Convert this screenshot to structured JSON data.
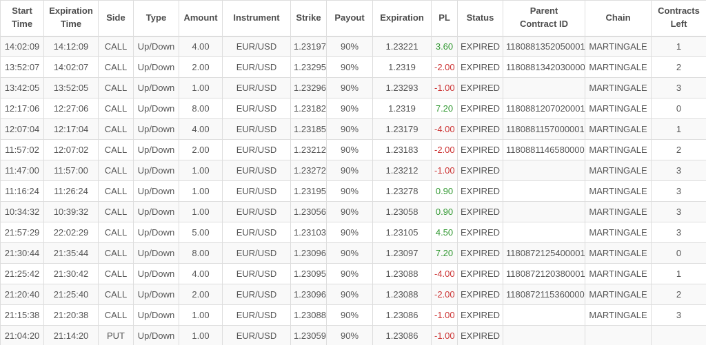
{
  "colors": {
    "pl_positive": "#339933",
    "pl_negative": "#cc3333",
    "header_text": "#4d4d4d",
    "body_text": "#555555",
    "border": "#dddddd",
    "row_stripe": "#f9f9f9"
  },
  "table": {
    "columns": [
      {
        "key": "start_time",
        "label": "Start\nTime"
      },
      {
        "key": "expiration_time",
        "label": "Expiration\nTime"
      },
      {
        "key": "side",
        "label": "Side"
      },
      {
        "key": "type",
        "label": "Type"
      },
      {
        "key": "amount",
        "label": "Amount"
      },
      {
        "key": "instrument",
        "label": "Instrument"
      },
      {
        "key": "strike",
        "label": "Strike"
      },
      {
        "key": "payout",
        "label": "Payout"
      },
      {
        "key": "expiration",
        "label": "Expiration"
      },
      {
        "key": "pl",
        "label": "PL"
      },
      {
        "key": "status",
        "label": "Status"
      },
      {
        "key": "parent_contract_id",
        "label": "Parent\nContract ID"
      },
      {
        "key": "chain",
        "label": "Chain"
      },
      {
        "key": "contracts_left",
        "label": "Contracts\nLeft"
      }
    ],
    "rows": [
      {
        "start_time": "14:02:09",
        "expiration_time": "14:12:09",
        "side": "CALL",
        "type": "Up/Down",
        "amount": "4.00",
        "instrument": "EUR/USD",
        "strike": "1.23197",
        "payout": "90%",
        "expiration": "1.23221",
        "pl": "3.60",
        "status": "EXPIRED",
        "parent_contract_id": "1180881352050001",
        "chain": "MARTINGALE",
        "contracts_left": "1"
      },
      {
        "start_time": "13:52:07",
        "expiration_time": "14:02:07",
        "side": "CALL",
        "type": "Up/Down",
        "amount": "2.00",
        "instrument": "EUR/USD",
        "strike": "1.23295",
        "payout": "90%",
        "expiration": "1.2319",
        "pl": "-2.00",
        "status": "EXPIRED",
        "parent_contract_id": "1180881342030000",
        "chain": "MARTINGALE",
        "contracts_left": "2"
      },
      {
        "start_time": "13:42:05",
        "expiration_time": "13:52:05",
        "side": "CALL",
        "type": "Up/Down",
        "amount": "1.00",
        "instrument": "EUR/USD",
        "strike": "1.23296",
        "payout": "90%",
        "expiration": "1.23293",
        "pl": "-1.00",
        "status": "EXPIRED",
        "parent_contract_id": "",
        "chain": "MARTINGALE",
        "contracts_left": "3"
      },
      {
        "start_time": "12:17:06",
        "expiration_time": "12:27:06",
        "side": "CALL",
        "type": "Up/Down",
        "amount": "8.00",
        "instrument": "EUR/USD",
        "strike": "1.23182",
        "payout": "90%",
        "expiration": "1.2319",
        "pl": "7.20",
        "status": "EXPIRED",
        "parent_contract_id": "1180881207020001",
        "chain": "MARTINGALE",
        "contracts_left": "0"
      },
      {
        "start_time": "12:07:04",
        "expiration_time": "12:17:04",
        "side": "CALL",
        "type": "Up/Down",
        "amount": "4.00",
        "instrument": "EUR/USD",
        "strike": "1.23185",
        "payout": "90%",
        "expiration": "1.23179",
        "pl": "-4.00",
        "status": "EXPIRED",
        "parent_contract_id": "1180881157000001",
        "chain": "MARTINGALE",
        "contracts_left": "1"
      },
      {
        "start_time": "11:57:02",
        "expiration_time": "12:07:02",
        "side": "CALL",
        "type": "Up/Down",
        "amount": "2.00",
        "instrument": "EUR/USD",
        "strike": "1.23212",
        "payout": "90%",
        "expiration": "1.23183",
        "pl": "-2.00",
        "status": "EXPIRED",
        "parent_contract_id": "1180881146580000",
        "chain": "MARTINGALE",
        "contracts_left": "2"
      },
      {
        "start_time": "11:47:00",
        "expiration_time": "11:57:00",
        "side": "CALL",
        "type": "Up/Down",
        "amount": "1.00",
        "instrument": "EUR/USD",
        "strike": "1.23272",
        "payout": "90%",
        "expiration": "1.23212",
        "pl": "-1.00",
        "status": "EXPIRED",
        "parent_contract_id": "",
        "chain": "MARTINGALE",
        "contracts_left": "3"
      },
      {
        "start_time": "11:16:24",
        "expiration_time": "11:26:24",
        "side": "CALL",
        "type": "Up/Down",
        "amount": "1.00",
        "instrument": "EUR/USD",
        "strike": "1.23195",
        "payout": "90%",
        "expiration": "1.23278",
        "pl": "0.90",
        "status": "EXPIRED",
        "parent_contract_id": "",
        "chain": "MARTINGALE",
        "contracts_left": "3"
      },
      {
        "start_time": "10:34:32",
        "expiration_time": "10:39:32",
        "side": "CALL",
        "type": "Up/Down",
        "amount": "1.00",
        "instrument": "EUR/USD",
        "strike": "1.23056",
        "payout": "90%",
        "expiration": "1.23058",
        "pl": "0.90",
        "status": "EXPIRED",
        "parent_contract_id": "",
        "chain": "MARTINGALE",
        "contracts_left": "3"
      },
      {
        "start_time": "21:57:29",
        "expiration_time": "22:02:29",
        "side": "CALL",
        "type": "Up/Down",
        "amount": "5.00",
        "instrument": "EUR/USD",
        "strike": "1.23103",
        "payout": "90%",
        "expiration": "1.23105",
        "pl": "4.50",
        "status": "EXPIRED",
        "parent_contract_id": "",
        "chain": "MARTINGALE",
        "contracts_left": "3"
      },
      {
        "start_time": "21:30:44",
        "expiration_time": "21:35:44",
        "side": "CALL",
        "type": "Up/Down",
        "amount": "8.00",
        "instrument": "EUR/USD",
        "strike": "1.23096",
        "payout": "90%",
        "expiration": "1.23097",
        "pl": "7.20",
        "status": "EXPIRED",
        "parent_contract_id": "1180872125400001",
        "chain": "MARTINGALE",
        "contracts_left": "0"
      },
      {
        "start_time": "21:25:42",
        "expiration_time": "21:30:42",
        "side": "CALL",
        "type": "Up/Down",
        "amount": "4.00",
        "instrument": "EUR/USD",
        "strike": "1.23095",
        "payout": "90%",
        "expiration": "1.23088",
        "pl": "-4.00",
        "status": "EXPIRED",
        "parent_contract_id": "1180872120380001",
        "chain": "MARTINGALE",
        "contracts_left": "1"
      },
      {
        "start_time": "21:20:40",
        "expiration_time": "21:25:40",
        "side": "CALL",
        "type": "Up/Down",
        "amount": "2.00",
        "instrument": "EUR/USD",
        "strike": "1.23096",
        "payout": "90%",
        "expiration": "1.23088",
        "pl": "-2.00",
        "status": "EXPIRED",
        "parent_contract_id": "1180872115360000",
        "chain": "MARTINGALE",
        "contracts_left": "2"
      },
      {
        "start_time": "21:15:38",
        "expiration_time": "21:20:38",
        "side": "CALL",
        "type": "Up/Down",
        "amount": "1.00",
        "instrument": "EUR/USD",
        "strike": "1.23088",
        "payout": "90%",
        "expiration": "1.23086",
        "pl": "-1.00",
        "status": "EXPIRED",
        "parent_contract_id": "",
        "chain": "MARTINGALE",
        "contracts_left": "3"
      },
      {
        "start_time": "21:04:20",
        "expiration_time": "21:14:20",
        "side": "PUT",
        "type": "Up/Down",
        "amount": "1.00",
        "instrument": "EUR/USD",
        "strike": "1.23059",
        "payout": "90%",
        "expiration": "1.23086",
        "pl": "-1.00",
        "status": "EXPIRED",
        "parent_contract_id": "",
        "chain": "",
        "contracts_left": ""
      }
    ]
  }
}
